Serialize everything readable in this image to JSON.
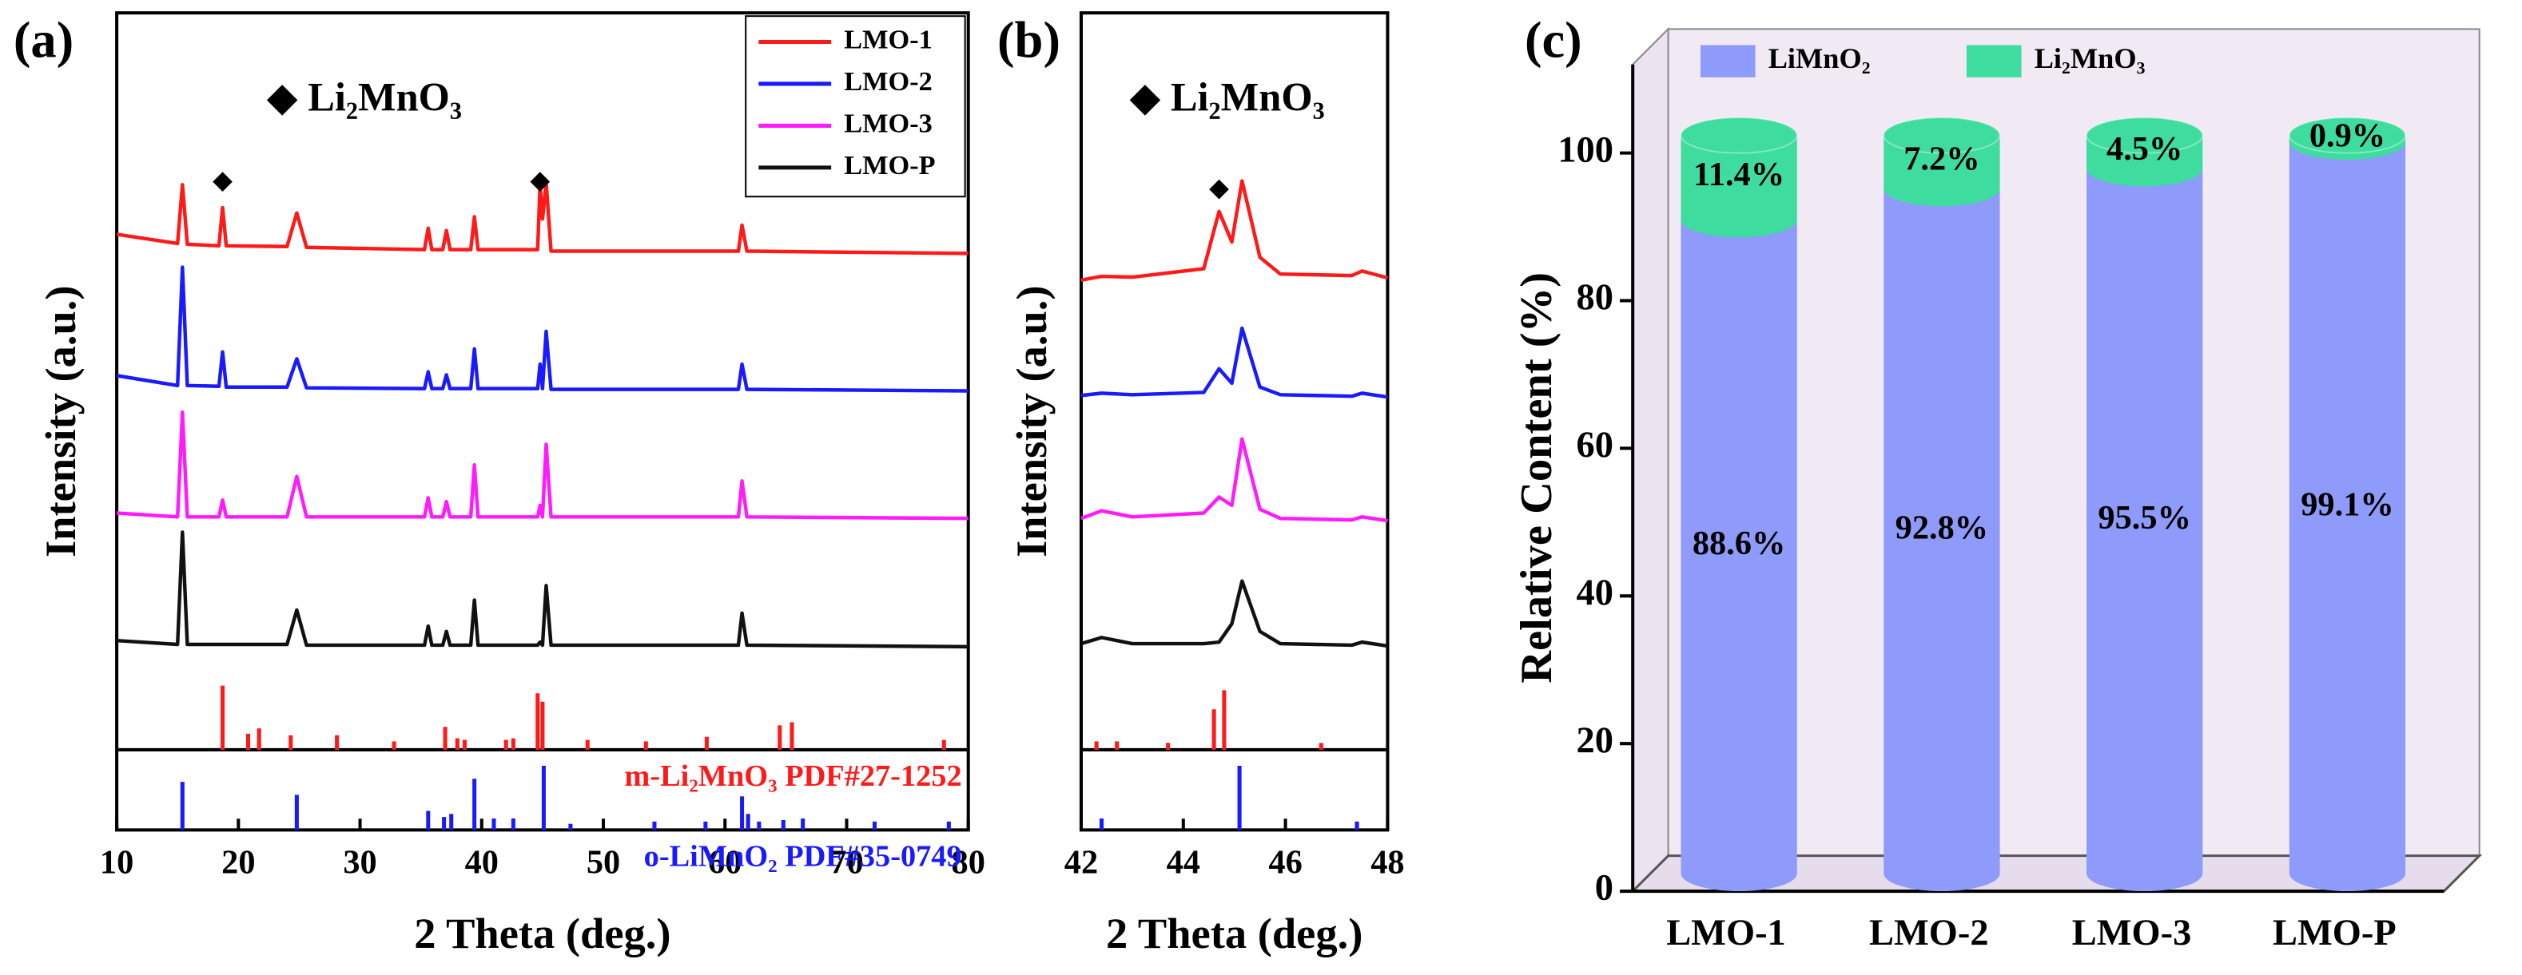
{
  "chart_data": [
    {
      "type": "line",
      "title": "(a)",
      "xlabel": "2 Theta (deg.)",
      "ylabel": "Intensity (a.u.)",
      "annotation": "◆ Li₂MnO₃",
      "markers": {
        "symbol": "◆",
        "x": [
          18.7,
          44.8
        ],
        "y": [
          84.8,
          84.8
        ]
      },
      "xlim": [
        10,
        80
      ],
      "xticks": [
        10,
        20,
        30,
        40,
        50,
        60,
        70,
        80
      ],
      "ylim": [
        0,
        107
      ],
      "x": [
        10,
        15,
        15.4,
        15.8,
        18.4,
        18.7,
        19.0,
        24.0,
        24.8,
        25.6,
        35.3,
        35.6,
        35.9,
        36.8,
        37.1,
        37.4,
        39.1,
        39.4,
        39.7,
        44.6,
        44.8,
        45.0,
        45.3,
        45.7,
        61.1,
        61.4,
        61.8,
        80
      ],
      "series": [
        {
          "name": "LMO-1",
          "color": "#ff1a1a",
          "values": [
            78,
            76.8,
            84.5,
            76.7,
            76.5,
            81.5,
            76.5,
            76.4,
            80.8,
            76.3,
            76,
            78.8,
            76,
            76,
            78.5,
            76,
            76,
            80.3,
            76,
            76,
            84.6,
            80,
            84.8,
            75.8,
            75.8,
            79.2,
            75.8,
            75.5
          ]
        },
        {
          "name": "LMO-2",
          "color": "#1a1aff",
          "values": [
            59.5,
            58.2,
            73.7,
            58.2,
            58.1,
            62.6,
            58,
            58,
            61.7,
            57.9,
            57.8,
            60,
            57.8,
            57.8,
            59.6,
            57.8,
            57.8,
            63,
            57.8,
            57.8,
            61,
            57.8,
            65.3,
            57.7,
            57.7,
            61,
            57.7,
            57.5
          ]
        },
        {
          "name": "LMO-3",
          "color": "#ff1aff",
          "values": [
            41.5,
            41,
            54.7,
            41,
            41,
            43.2,
            41,
            41,
            46.3,
            41,
            41,
            43.5,
            41,
            41,
            43,
            41,
            41,
            47.8,
            41,
            41,
            42.5,
            41,
            50.5,
            41,
            41,
            45.7,
            41,
            40.8
          ]
        },
        {
          "name": "LMO-P",
          "color": "#111111",
          "values": [
            24.8,
            24.3,
            39,
            24.3,
            24.3,
            24.3,
            24.3,
            24.3,
            28.8,
            24.2,
            24.2,
            26.7,
            24.2,
            24.2,
            26,
            24.2,
            24.2,
            30.1,
            24.2,
            24.2,
            24.6,
            24.2,
            32,
            24.2,
            24.2,
            28.4,
            24.2,
            24
          ]
        }
      ],
      "references": [
        {
          "name": "m-Li₂MnO₃ PDF#27-1252",
          "color": "#ff1a1a",
          "base": 10.5,
          "x": [
            18.7,
            20.8,
            21.7,
            24.3,
            28.1,
            32.8,
            37.0,
            38.0,
            38.6,
            42.0,
            42.6,
            44.6,
            45.0,
            48.7,
            53.5,
            58.5,
            64.5,
            65.5,
            78
          ],
          "values": [
            18.9,
            12.6,
            13.3,
            12.4,
            12.4,
            11.6,
            13.5,
            12.0,
            11.8,
            11.8,
            12.0,
            17.9,
            16.8,
            11.8,
            11.6,
            12.2,
            13.7,
            14.1,
            11.8
          ]
        },
        {
          "name": "o-LiMnO₂ PDF#35-0749",
          "color": "#1a1aff",
          "base": 0,
          "x": [
            15.4,
            24.8,
            35.6,
            36.9,
            37.5,
            39.4,
            41.0,
            42.6,
            45.1,
            47.3,
            54.2,
            58.4,
            61.4,
            61.9,
            62.8,
            64.8,
            66.4,
            72.3,
            78.4
          ],
          "values": [
            6.3,
            4.6,
            2.5,
            1.7,
            2.1,
            6.7,
            1.5,
            1.5,
            8.4,
            0.8,
            1.1,
            1.1,
            4.4,
            2.1,
            1.1,
            1.3,
            1.5,
            1.1,
            1.1
          ]
        }
      ]
    },
    {
      "type": "line",
      "title": "(b)",
      "xlabel": "2 Theta (deg.)",
      "ylabel": "Intensity (a.u.)",
      "annotation": "◆ Li₂MnO₃",
      "markers": {
        "symbol": "◆",
        "x": [
          44.7
        ],
        "y": [
          83.8
        ]
      },
      "xlim": [
        42,
        48
      ],
      "xticks": [
        42,
        44,
        46,
        48
      ],
      "ylim": [
        0,
        107
      ],
      "x": [
        42,
        42.4,
        43,
        44.4,
        44.7,
        44.95,
        45.15,
        45.5,
        45.9,
        47.3,
        47.5,
        48
      ],
      "series": [
        {
          "color": "#ff1a1a",
          "values": [
            72,
            72.5,
            72.4,
            73.5,
            81,
            77,
            85,
            75,
            72.8,
            72.6,
            73.2,
            72.3
          ]
        },
        {
          "color": "#1a1aff",
          "values": [
            56.9,
            57.2,
            57,
            57.3,
            60.4,
            58.5,
            65.7,
            58,
            57,
            56.8,
            57.2,
            56.7
          ]
        },
        {
          "color": "#ff1aff",
          "values": [
            40.8,
            41.8,
            41,
            41.5,
            43.6,
            42.5,
            51.2,
            42,
            40.8,
            40.6,
            41,
            40.5
          ]
        },
        {
          "color": "#111111",
          "values": [
            24.4,
            25.2,
            24.4,
            24.4,
            24.6,
            27,
            32.6,
            26,
            24.4,
            24.2,
            24.6,
            24.1
          ]
        }
      ],
      "references": [
        {
          "color": "#ff1a1a",
          "base": 10.5,
          "x": [
            42.3,
            42.7,
            43.7,
            44.6,
            44.8,
            46.7
          ],
          "values": [
            11.6,
            11.6,
            11.4,
            15.8,
            18.3,
            11.4
          ]
        },
        {
          "color": "#1a1aff",
          "base": 0,
          "x": [
            42.4,
            45.1,
            47.4
          ],
          "values": [
            1.5,
            8.4,
            1.1
          ]
        }
      ]
    },
    {
      "type": "bar",
      "stacked": true,
      "title": "(c)",
      "ylabel": "Relative Content (%)",
      "categories": [
        "LMO-1",
        "LMO-2",
        "LMO-3",
        "LMO-P"
      ],
      "ylim": [
        0,
        112
      ],
      "yticks": [
        0,
        20,
        40,
        60,
        80,
        100
      ],
      "series": [
        {
          "name": "LiMnO₂",
          "color": "#8e9bfa",
          "values": [
            88.6,
            92.8,
            95.5,
            99.1
          ],
          "value_labels": [
            "88.6%",
            "92.8%",
            "95.5%",
            "99.1%"
          ]
        },
        {
          "name": "Li₂MnO₃",
          "color": "#3fdc9f",
          "values": [
            11.4,
            7.2,
            4.5,
            0.9
          ],
          "value_labels": [
            "11.4%",
            "7.2%",
            "4.5%",
            "0.9%"
          ]
        }
      ]
    }
  ]
}
